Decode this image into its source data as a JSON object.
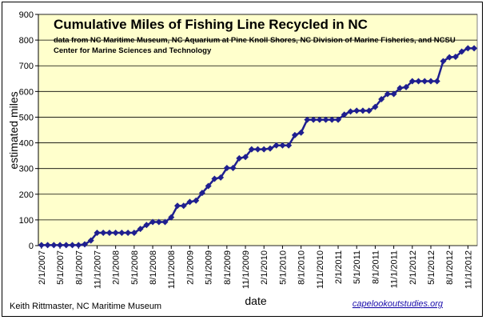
{
  "chart_data": {
    "type": "line",
    "title": "Cumulative Miles of Fishing Line Recycled in NC",
    "subtitle_lines": [
      "data from NC Maritime Museum, NC Aquarium at Pine Knoll Shores, NC Division of Marine Fisheries, and NCSU",
      "Center for Marine Sciences and Technology"
    ],
    "xlabel": "date",
    "ylabel": "estimated miles",
    "ylim": [
      0,
      900
    ],
    "yticks": [
      0,
      100,
      200,
      300,
      400,
      500,
      600,
      700,
      800,
      900
    ],
    "x_tick_labels": [
      "2/1/2007",
      "5/1/2007",
      "8/1/2007",
      "11/1/2007",
      "2/1/2008",
      "5/1/2008",
      "8/1/2008",
      "11/1/2008",
      "2/1/2009",
      "5/1/2009",
      "8/1/2009",
      "11/1/2009",
      "2/1/2010",
      "5/1/2010",
      "8/1/2010",
      "11/1/2010",
      "2/1/2011",
      "5/1/2011",
      "8/1/2011",
      "11/1/2011",
      "2/1/2012",
      "5/1/2012",
      "8/1/2012",
      "11/1/2012"
    ],
    "grid": "horizontal",
    "legend": "none",
    "line_color": "#1f1f8f",
    "plot_background": "#ffffcc",
    "series": [
      {
        "x": [
          "2007-02-01",
          "2007-03-01",
          "2007-04-01",
          "2007-05-01",
          "2007-06-01",
          "2007-07-01",
          "2007-08-01",
          "2007-09-01",
          "2007-10-01",
          "2007-11-01",
          "2007-12-01",
          "2008-01-01",
          "2008-02-01",
          "2008-03-01",
          "2008-04-01",
          "2008-05-01",
          "2008-06-01",
          "2008-07-01",
          "2008-08-01",
          "2008-09-01",
          "2008-10-01",
          "2008-11-01",
          "2008-12-01",
          "2009-01-01",
          "2009-02-01",
          "2009-03-01",
          "2009-04-01",
          "2009-05-01",
          "2009-06-01",
          "2009-07-01",
          "2009-08-01",
          "2009-09-01",
          "2009-10-01",
          "2009-11-01",
          "2009-12-01",
          "2010-01-01",
          "2010-02-01",
          "2010-03-01",
          "2010-04-01",
          "2010-05-01",
          "2010-06-01",
          "2010-07-01",
          "2010-08-01",
          "2010-09-01",
          "2010-10-01",
          "2010-11-01",
          "2010-12-01",
          "2011-01-01",
          "2011-02-01",
          "2011-03-01",
          "2011-04-01",
          "2011-05-01",
          "2011-06-01",
          "2011-07-01",
          "2011-08-01",
          "2011-09-01",
          "2011-10-01",
          "2011-11-01",
          "2011-12-01",
          "2012-01-01",
          "2012-02-01",
          "2012-03-01",
          "2012-04-01",
          "2012-05-01",
          "2012-06-01",
          "2012-07-01",
          "2012-08-01",
          "2012-09-01",
          "2012-10-01",
          "2012-11-01",
          "2012-12-01"
        ],
        "values": [
          2,
          2,
          2,
          2,
          2,
          2,
          2,
          5,
          20,
          50,
          50,
          50,
          50,
          50,
          50,
          50,
          65,
          80,
          92,
          92,
          92,
          110,
          155,
          155,
          170,
          175,
          205,
          232,
          260,
          265,
          302,
          302,
          340,
          345,
          375,
          375,
          375,
          378,
          390,
          390,
          390,
          430,
          440,
          490,
          490,
          490,
          490,
          490,
          490,
          510,
          522,
          525,
          525,
          525,
          540,
          570,
          590,
          590,
          613,
          617,
          640,
          640,
          640,
          640,
          640,
          718,
          733,
          735,
          755,
          768,
          768
        ]
      }
    ]
  },
  "footer": {
    "credit": "Keith Rittmaster,  NC Maritime Museum",
    "url": "capelookoutstudies.org"
  }
}
